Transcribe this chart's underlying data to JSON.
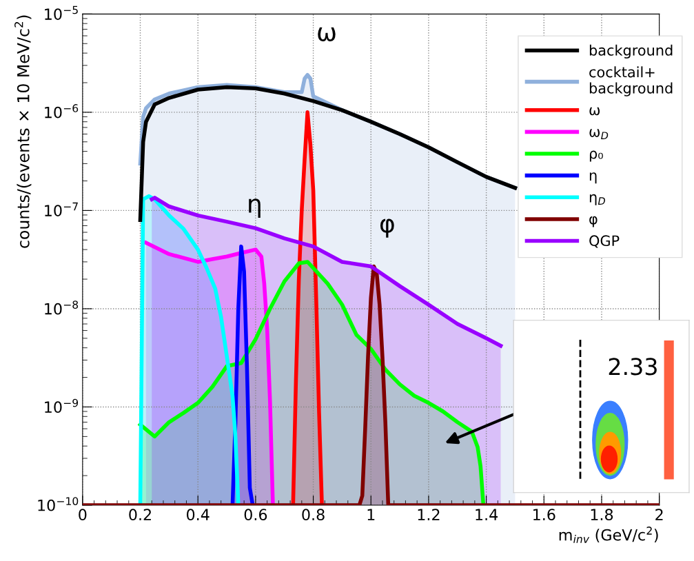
{
  "chart_data": {
    "type": "area",
    "xlabel": "m$_{inv}$ (GeV/c$^{2}$)",
    "ylabel": "counts/(events × 10 MeV/c$^{2}$)",
    "xlim": [
      0,
      2
    ],
    "ylim": [
      1e-10,
      1e-05
    ],
    "log": "y",
    "grid": true,
    "legend": "top right",
    "xticks": [
      0,
      0.2,
      0.4,
      0.6,
      0.8,
      1,
      1.2,
      1.4,
      1.6,
      1.8,
      2
    ],
    "yticks": [
      {
        "value": 1e-10,
        "label": "10$^{−10}$"
      },
      {
        "value": 1e-09,
        "label": "10$^{−9}$"
      },
      {
        "value": 1e-08,
        "label": "10$^{−8}$"
      },
      {
        "value": 1e-07,
        "label": "10$^{−7}$"
      },
      {
        "value": 1e-06,
        "label": "10$^{−6}$"
      },
      {
        "value": 1e-05,
        "label": "10$^{−5}$"
      }
    ],
    "series": [
      {
        "name": "background",
        "type": "line",
        "color": "#000000",
        "x": [
          0.2,
          0.21,
          0.22,
          0.25,
          0.3,
          0.4,
          0.5,
          0.6,
          0.7,
          0.8,
          0.9,
          1.0,
          1.1,
          1.2,
          1.3,
          1.4,
          1.5
        ],
        "values": [
          8e-08,
          5e-07,
          8e-07,
          1.2e-06,
          1.4e-06,
          1.7e-06,
          1.8e-06,
          1.75e-06,
          1.55e-06,
          1.3e-06,
          1.05e-06,
          8e-07,
          6e-07,
          4.4e-07,
          3.1e-07,
          2.2e-07,
          1.7e-07
        ]
      },
      {
        "name": "cocktail+\nbackground",
        "type": "area",
        "color": "#8fb0dc",
        "x": [
          0.2,
          0.21,
          0.22,
          0.25,
          0.3,
          0.4,
          0.5,
          0.6,
          0.7,
          0.76,
          0.77,
          0.78,
          0.79,
          0.8,
          0.9,
          1.0,
          1.1,
          1.2,
          1.3,
          1.4,
          1.5
        ],
        "values": [
          3e-07,
          9e-07,
          1.1e-06,
          1.35e-06,
          1.55e-06,
          1.8e-06,
          1.9e-06,
          1.8e-06,
          1.6e-06,
          1.6e-06,
          2.2e-06,
          2.4e-06,
          2.2e-06,
          1.45e-06,
          1.05e-06,
          8e-07,
          6e-07,
          4.4e-07,
          3.1e-07,
          2.2e-07,
          1.7e-07
        ]
      },
      {
        "name": "ω",
        "type": "area",
        "color": "#ff0000",
        "x": [
          0.73,
          0.74,
          0.75,
          0.76,
          0.77,
          0.78,
          0.79,
          0.8,
          0.81,
          0.82,
          0.83
        ],
        "values": [
          1e-10,
          1.9e-09,
          2e-08,
          1e-07,
          3.3e-07,
          1e-06,
          4.7e-07,
          1.6e-07,
          1.3e-08,
          9e-10,
          1e-10
        ]
      },
      {
        "name": "ω$_{D}$",
        "type": "area",
        "color": "#ff00ff",
        "x": [
          0.22,
          0.3,
          0.4,
          0.45,
          0.5,
          0.55,
          0.6,
          0.62,
          0.63,
          0.64,
          0.65,
          0.66
        ],
        "values": [
          4.7e-08,
          3.6e-08,
          3e-08,
          3.2e-08,
          3.4e-08,
          3.7e-08,
          4e-08,
          3.4e-08,
          1.8e-08,
          6.3e-09,
          1.15e-09,
          1e-10
        ]
      },
      {
        "name": "ρ₀",
        "type": "area",
        "color": "#00ff00",
        "x": [
          0.2,
          0.25,
          0.3,
          0.35,
          0.4,
          0.45,
          0.5,
          0.55,
          0.6,
          0.65,
          0.7,
          0.75,
          0.78,
          0.8,
          0.85,
          0.9,
          0.95,
          1.0,
          1.05,
          1.1,
          1.15,
          1.2,
          1.25,
          1.3,
          1.35,
          1.37,
          1.38,
          1.39
        ],
        "values": [
          6.6e-10,
          5e-10,
          7e-10,
          8.7e-10,
          1.1e-09,
          1.6e-09,
          2.6e-09,
          2.8e-09,
          4.9e-09,
          1e-08,
          1.9e-08,
          2.9e-08,
          3e-08,
          2.6e-08,
          1.8e-08,
          1.1e-08,
          5.4e-09,
          3.9e-09,
          2.4e-09,
          1.7e-09,
          1.3e-09,
          1.1e-09,
          9e-10,
          7e-10,
          5.6e-10,
          3.9e-10,
          2.5e-10,
          1e-10
        ]
      },
      {
        "name": "η",
        "type": "area",
        "color": "#0000ff",
        "x": [
          0.52,
          0.53,
          0.54,
          0.55,
          0.56,
          0.57,
          0.58,
          0.59
        ],
        "values": [
          1e-10,
          7e-10,
          1e-08,
          4.3e-08,
          2.4e-08,
          2.6e-09,
          1.5e-10,
          1e-10
        ]
      },
      {
        "name": "η$_{D}$",
        "type": "area",
        "color": "#00ffff",
        "x": [
          0.2,
          0.21,
          0.23,
          0.25,
          0.3,
          0.35,
          0.4,
          0.43,
          0.46,
          0.48,
          0.5,
          0.52,
          0.53,
          0.54
        ],
        "values": [
          1e-10,
          1.3e-07,
          1.4e-07,
          1.3e-07,
          8.9e-08,
          6.5e-08,
          4e-08,
          2.6e-08,
          1.6e-08,
          8.3e-09,
          3.3e-09,
          1.3e-09,
          5e-10,
          1e-10
        ]
      },
      {
        "name": "φ",
        "type": "area",
        "color": "#800000",
        "x": [
          0,
          0.96,
          0.97,
          0.98,
          0.99,
          1.0,
          1.01,
          1.02,
          1.03,
          1.04,
          1.05,
          1.06,
          2
        ],
        "values": [
          1e-10,
          1e-10,
          1.25e-10,
          6e-10,
          3.3e-09,
          1.3e-08,
          2.7e-08,
          2.3e-08,
          1.1e-08,
          3.2e-09,
          7e-10,
          1e-10,
          1e-10
        ]
      },
      {
        "name": "QGP",
        "color": "#9900ff",
        "x": [
          0.24,
          0.25,
          0.3,
          0.4,
          0.5,
          0.6,
          0.7,
          0.8,
          0.9,
          1.0,
          1.1,
          1.2,
          1.3,
          1.4,
          1.45
        ],
        "values": [
          1.3e-07,
          1.35e-07,
          1.1e-07,
          8.9e-08,
          7.7e-08,
          6.6e-08,
          5.2e-08,
          4.3e-08,
          3e-08,
          2.7e-08,
          1.7e-08,
          1.1e-08,
          7e-09,
          5e-09,
          4.2e-09
        ]
      }
    ],
    "annotations": [
      {
        "text": "ω",
        "x": 0.8,
        "y": 2.4e-06
      },
      {
        "text": "η",
        "x": 0.55,
        "y": 4.3e-08
      },
      {
        "text": "φ",
        "x": 1.01,
        "y": 2.7e-08
      },
      "2.33"
    ]
  }
}
